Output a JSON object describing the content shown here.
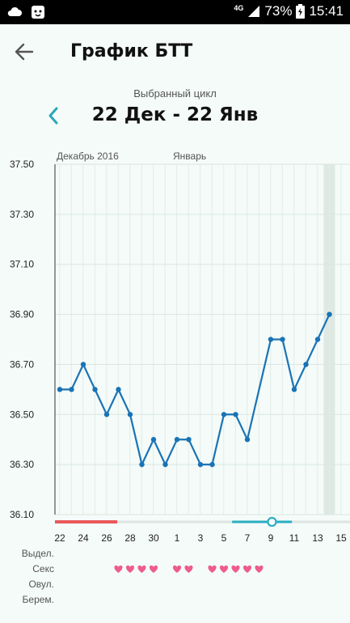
{
  "status_bar": {
    "network": "4G",
    "battery_percent": "73%",
    "time": "15:41",
    "icons": [
      "cloud-icon",
      "bear-app-icon",
      "signal-icon",
      "battery-charging-icon"
    ]
  },
  "header": {
    "title": "График БТТ",
    "back_icon": "arrow-left-icon"
  },
  "cycle": {
    "caption": "Выбранный цикл",
    "range": "22 Дек - 22 Янв",
    "prev_icon": "chevron-left-icon"
  },
  "chart_data": {
    "type": "line",
    "month_labels": [
      {
        "label": "Декабрь 2016",
        "x": 22
      },
      {
        "label": "Январь",
        "x": 32
      }
    ],
    "ylim": [
      36.1,
      37.5
    ],
    "y_ticks": [
      "37.50",
      "37.30",
      "37.10",
      "36.90",
      "36.70",
      "36.50",
      "36.30",
      "36.10"
    ],
    "xlim": [
      22,
      46
    ],
    "x_ticks": [
      {
        "label": "22",
        "x": 22
      },
      {
        "label": "24",
        "x": 24
      },
      {
        "label": "26",
        "x": 26
      },
      {
        "label": "28",
        "x": 28
      },
      {
        "label": "30",
        "x": 30
      },
      {
        "label": "1",
        "x": 32
      },
      {
        "label": "3",
        "x": 34
      },
      {
        "label": "5",
        "x": 36
      },
      {
        "label": "7",
        "x": 38
      },
      {
        "label": "9",
        "x": 40
      },
      {
        "label": "11",
        "x": 42
      },
      {
        "label": "13",
        "x": 44
      },
      {
        "label": "15",
        "x": 46
      }
    ],
    "series": [
      {
        "color": "#1a73b5",
        "points": [
          [
            22,
            36.6
          ],
          [
            23,
            36.6
          ],
          [
            24,
            36.7
          ],
          [
            25,
            36.6
          ],
          [
            26,
            36.5
          ],
          [
            27,
            36.6
          ],
          [
            28,
            36.5
          ],
          [
            29,
            36.3
          ],
          [
            30,
            36.4
          ],
          [
            31,
            36.3
          ],
          [
            32,
            36.4
          ],
          [
            33,
            36.4
          ],
          [
            34,
            36.3
          ],
          [
            35,
            36.3
          ],
          [
            36,
            36.5
          ],
          [
            37,
            36.5
          ],
          [
            38,
            36.4
          ],
          [
            40,
            36.8
          ],
          [
            41,
            36.8
          ],
          [
            42,
            36.6
          ],
          [
            43,
            36.7
          ],
          [
            44,
            36.8
          ],
          [
            45,
            36.9
          ]
        ]
      }
    ],
    "highlight_day": 45,
    "period_bar": {
      "start": 22,
      "end": 26.9,
      "color": "#e8595b"
    },
    "fertile_bar": {
      "start": 36.7,
      "end": 41.8,
      "color": "#2aaec2"
    },
    "ovulation_marker": 40.1,
    "grid": true
  },
  "legend_rows": {
    "labels": [
      "Выдел.",
      "Секс",
      "Овул.",
      "Берем."
    ],
    "sex_days": [
      27,
      28,
      29,
      30,
      32,
      33,
      35,
      36,
      37,
      38,
      39
    ],
    "heart_color": "#ee5c8c"
  }
}
